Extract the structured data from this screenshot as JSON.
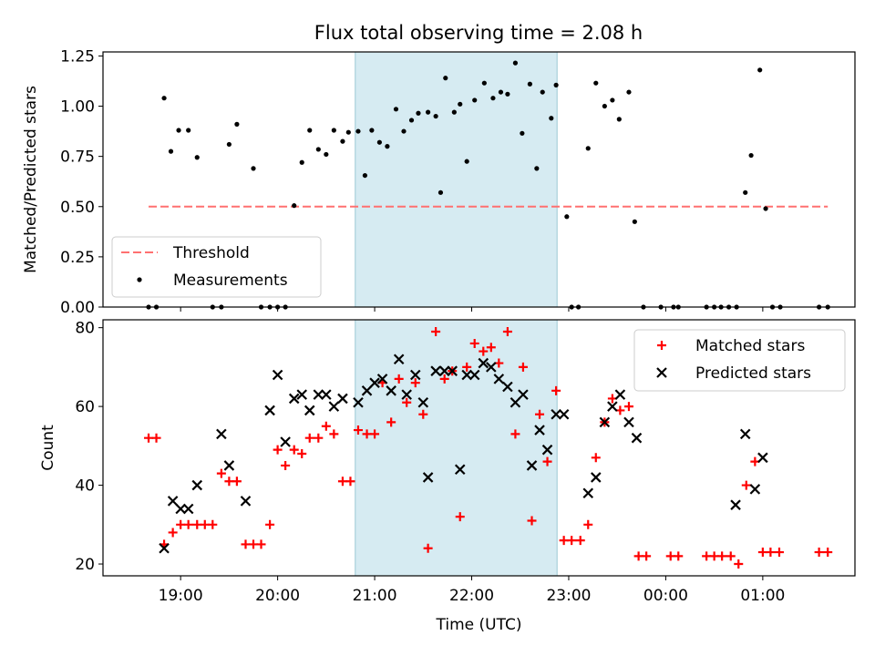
{
  "title": "Flux total observing time = 2.08 h",
  "chart_data": [
    {
      "type": "scatter",
      "panel": "top",
      "ylabel": "Matched/Predicted stars",
      "ylim": [
        0,
        1.27
      ],
      "yticks": [
        0,
        0.25,
        0.5,
        0.75,
        1.0,
        1.25
      ],
      "ytick_labels": [
        "0.00",
        "0.25",
        "0.50",
        "0.75",
        "1.00",
        "1.25"
      ],
      "xlim": [
        18.2,
        25.95
      ],
      "shaded_interval": [
        20.8,
        22.88
      ],
      "shaded_color": "#add8e6",
      "legend_position": "lower-left",
      "threshold": {
        "name": "Threshold",
        "value": 0.5,
        "x_range": [
          18.67,
          25.67
        ],
        "color": "#ff7070",
        "style": "dashed"
      },
      "series": [
        {
          "name": "Measurements",
          "color": "#000000",
          "marker": "dot",
          "points": [
            [
              18.67,
              0
            ],
            [
              18.75,
              0
            ],
            [
              18.83,
              1.04
            ],
            [
              18.9,
              0.775
            ],
            [
              18.98,
              0.88
            ],
            [
              19.08,
              0.88
            ],
            [
              19.17,
              0.745
            ],
            [
              19.33,
              0
            ],
            [
              19.42,
              0
            ],
            [
              19.5,
              0.81
            ],
            [
              19.58,
              0.91
            ],
            [
              19.75,
              0.69
            ],
            [
              19.83,
              0
            ],
            [
              19.92,
              0
            ],
            [
              20.0,
              0
            ],
            [
              20.08,
              0
            ],
            [
              20.17,
              0.505
            ],
            [
              20.25,
              0.72
            ],
            [
              20.33,
              0.88
            ],
            [
              20.42,
              0.785
            ],
            [
              20.5,
              0.76
            ],
            [
              20.58,
              0.88
            ],
            [
              20.67,
              0.825
            ],
            [
              20.73,
              0.87
            ],
            [
              20.83,
              0.875
            ],
            [
              20.9,
              0.655
            ],
            [
              20.97,
              0.88
            ],
            [
              21.05,
              0.82
            ],
            [
              21.13,
              0.8
            ],
            [
              21.22,
              0.985
            ],
            [
              21.3,
              0.875
            ],
            [
              21.38,
              0.93
            ],
            [
              21.45,
              0.965
            ],
            [
              21.55,
              0.97
            ],
            [
              21.63,
              0.95
            ],
            [
              21.68,
              0.57
            ],
            [
              21.73,
              1.14
            ],
            [
              21.82,
              0.97
            ],
            [
              21.88,
              1.01
            ],
            [
              21.95,
              0.725
            ],
            [
              22.03,
              1.03
            ],
            [
              22.13,
              1.115
            ],
            [
              22.22,
              1.04
            ],
            [
              22.3,
              1.07
            ],
            [
              22.37,
              1.06
            ],
            [
              22.45,
              1.215
            ],
            [
              22.52,
              0.865
            ],
            [
              22.6,
              1.11
            ],
            [
              22.67,
              0.69
            ],
            [
              22.73,
              1.07
            ],
            [
              22.82,
              0.94
            ],
            [
              22.87,
              1.105
            ],
            [
              22.98,
              0.45
            ],
            [
              23.03,
              0
            ],
            [
              23.1,
              0
            ],
            [
              23.2,
              0.79
            ],
            [
              23.28,
              1.115
            ],
            [
              23.37,
              1.0
            ],
            [
              23.45,
              1.03
            ],
            [
              23.52,
              0.935
            ],
            [
              23.62,
              1.07
            ],
            [
              23.68,
              0.425
            ],
            [
              23.77,
              0
            ],
            [
              23.95,
              0
            ],
            [
              24.08,
              0
            ],
            [
              24.13,
              0
            ],
            [
              24.42,
              0
            ],
            [
              24.5,
              0
            ],
            [
              24.57,
              0
            ],
            [
              24.65,
              0
            ],
            [
              24.73,
              0
            ],
            [
              24.82,
              0.57
            ],
            [
              24.88,
              0.755
            ],
            [
              24.97,
              1.18
            ],
            [
              25.03,
              0.49
            ],
            [
              25.1,
              0
            ],
            [
              25.18,
              0
            ],
            [
              25.58,
              0
            ],
            [
              25.67,
              0
            ]
          ]
        }
      ]
    },
    {
      "type": "scatter",
      "panel": "bottom",
      "xlabel": "Time (UTC)",
      "ylabel": "Count",
      "ylim": [
        17,
        82
      ],
      "yticks": [
        20,
        40,
        60,
        80
      ],
      "ytick_labels": [
        "20",
        "40",
        "60",
        "80"
      ],
      "xlim": [
        18.2,
        25.95
      ],
      "xticks": [
        19,
        20,
        21,
        22,
        23,
        24,
        25
      ],
      "xtick_labels": [
        "19:00",
        "20:00",
        "21:00",
        "22:00",
        "23:00",
        "00:00",
        "01:00"
      ],
      "shaded_interval": [
        20.8,
        22.88
      ],
      "shaded_color": "#add8e6",
      "legend_position": "top-right",
      "series": [
        {
          "name": "Matched stars",
          "color": "#ff0000",
          "marker": "plus",
          "points": [
            [
              18.67,
              52
            ],
            [
              18.75,
              52
            ],
            [
              18.83,
              25
            ],
            [
              18.92,
              28
            ],
            [
              19.0,
              30
            ],
            [
              19.08,
              30
            ],
            [
              19.17,
              30
            ],
            [
              19.25,
              30
            ],
            [
              19.33,
              30
            ],
            [
              19.42,
              43
            ],
            [
              19.5,
              41
            ],
            [
              19.58,
              41
            ],
            [
              19.67,
              25
            ],
            [
              19.75,
              25
            ],
            [
              19.83,
              25
            ],
            [
              19.92,
              30
            ],
            [
              20.0,
              49
            ],
            [
              20.08,
              45
            ],
            [
              20.17,
              49
            ],
            [
              20.25,
              48
            ],
            [
              20.33,
              52
            ],
            [
              20.42,
              52
            ],
            [
              20.5,
              55
            ],
            [
              20.58,
              53
            ],
            [
              20.67,
              41
            ],
            [
              20.75,
              41
            ],
            [
              20.83,
              54
            ],
            [
              20.92,
              53
            ],
            [
              21.0,
              53
            ],
            [
              21.08,
              66
            ],
            [
              21.17,
              56
            ],
            [
              21.25,
              67
            ],
            [
              21.33,
              61
            ],
            [
              21.42,
              66
            ],
            [
              21.5,
              58
            ],
            [
              21.55,
              24
            ],
            [
              21.63,
              79
            ],
            [
              21.72,
              67
            ],
            [
              21.8,
              69
            ],
            [
              21.88,
              32
            ],
            [
              21.95,
              70
            ],
            [
              22.03,
              76
            ],
            [
              22.12,
              74
            ],
            [
              22.2,
              75
            ],
            [
              22.28,
              71
            ],
            [
              22.37,
              79
            ],
            [
              22.45,
              53
            ],
            [
              22.53,
              70
            ],
            [
              22.62,
              31
            ],
            [
              22.7,
              58
            ],
            [
              22.78,
              46
            ],
            [
              22.87,
              64
            ],
            [
              22.95,
              26
            ],
            [
              23.03,
              26
            ],
            [
              23.12,
              26
            ],
            [
              23.2,
              30
            ],
            [
              23.28,
              47
            ],
            [
              23.37,
              56
            ],
            [
              23.45,
              62
            ],
            [
              23.53,
              59
            ],
            [
              23.62,
              60
            ],
            [
              23.72,
              22
            ],
            [
              23.8,
              22
            ],
            [
              24.05,
              22
            ],
            [
              24.13,
              22
            ],
            [
              24.42,
              22
            ],
            [
              24.5,
              22
            ],
            [
              24.58,
              22
            ],
            [
              24.67,
              22
            ],
            [
              24.75,
              20
            ],
            [
              24.83,
              40
            ],
            [
              24.92,
              46
            ],
            [
              25.0,
              23
            ],
            [
              25.08,
              23
            ],
            [
              25.17,
              23
            ],
            [
              25.58,
              23
            ],
            [
              25.67,
              23
            ]
          ]
        },
        {
          "name": "Predicted stars",
          "color": "#000000",
          "marker": "cross",
          "points": [
            [
              18.83,
              24
            ],
            [
              18.92,
              36
            ],
            [
              19.0,
              34
            ],
            [
              19.08,
              34
            ],
            [
              19.17,
              40
            ],
            [
              19.42,
              53
            ],
            [
              19.5,
              45
            ],
            [
              19.67,
              36
            ],
            [
              19.92,
              59
            ],
            [
              20.0,
              68
            ],
            [
              20.08,
              51
            ],
            [
              20.17,
              62
            ],
            [
              20.25,
              63
            ],
            [
              20.33,
              59
            ],
            [
              20.42,
              63
            ],
            [
              20.5,
              63
            ],
            [
              20.58,
              60
            ],
            [
              20.67,
              62
            ],
            [
              20.83,
              61
            ],
            [
              20.92,
              64
            ],
            [
              21.0,
              66
            ],
            [
              21.08,
              67
            ],
            [
              21.17,
              64
            ],
            [
              21.25,
              72
            ],
            [
              21.33,
              63
            ],
            [
              21.42,
              68
            ],
            [
              21.5,
              61
            ],
            [
              21.55,
              42
            ],
            [
              21.63,
              69
            ],
            [
              21.72,
              69
            ],
            [
              21.8,
              69
            ],
            [
              21.88,
              44
            ],
            [
              21.95,
              68
            ],
            [
              22.03,
              68
            ],
            [
              22.12,
              71
            ],
            [
              22.2,
              70
            ],
            [
              22.28,
              67
            ],
            [
              22.37,
              65
            ],
            [
              22.45,
              61
            ],
            [
              22.53,
              63
            ],
            [
              22.62,
              45
            ],
            [
              22.7,
              54
            ],
            [
              22.78,
              49
            ],
            [
              22.87,
              58
            ],
            [
              22.95,
              58
            ],
            [
              23.2,
              38
            ],
            [
              23.28,
              42
            ],
            [
              23.37,
              56
            ],
            [
              23.45,
              60
            ],
            [
              23.53,
              63
            ],
            [
              23.62,
              56
            ],
            [
              23.7,
              52
            ],
            [
              24.72,
              35
            ],
            [
              24.82,
              53
            ],
            [
              24.92,
              39
            ],
            [
              25.0,
              47
            ]
          ]
        }
      ]
    }
  ]
}
